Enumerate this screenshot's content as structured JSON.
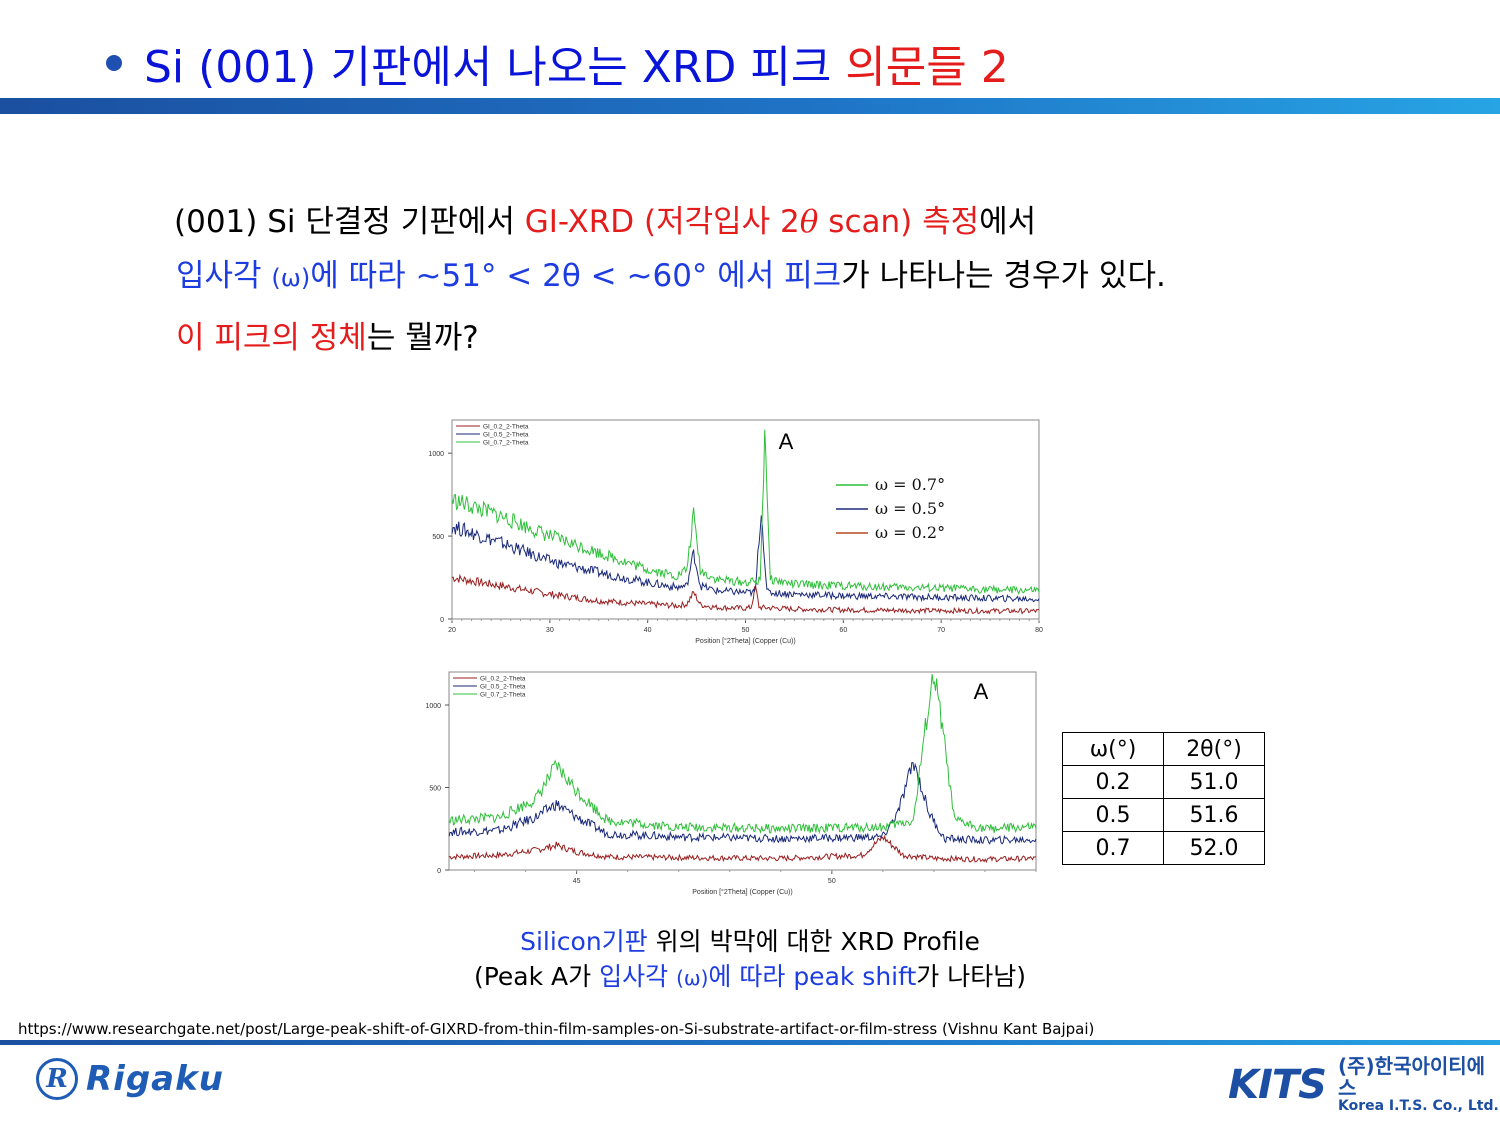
{
  "title": {
    "main": "Si (001) 기판에서 나오는 XRD 피크",
    "highlight": "의문들 2"
  },
  "body": {
    "line1_a": "(001) Si 단결정 기판에서 ",
    "line1_b": "GI-XRD (저각입사 2",
    "line1_theta": "θ",
    "line1_c": " scan) 측정",
    "line1_d": "에서",
    "line2_a": "입사각 ",
    "line2_omega": "(ω)",
    "line2_b": "에 따라  ~51° < 2θ < ~60° 에서 피크",
    "line2_c": "가 나타나는 경우가 있다.",
    "line3_a": "이 피크의 정체",
    "line3_b": "는 뭘까?"
  },
  "charts": {
    "top": {
      "peak_label": "A",
      "legend_small": [
        "GI_0.2_2-Theta",
        "GI_0.5_2-Theta",
        "GI_0.7_2-Theta"
      ],
      "legend_big": [
        "ω = 0.7°",
        "ω = 0.5°",
        "ω = 0.2°"
      ],
      "xlabel": "Position [°2Theta] (Copper (Cu))",
      "yticks": [
        "1000",
        "500",
        "0"
      ],
      "xticks": [
        "20",
        "30",
        "40",
        "50",
        "60",
        "70",
        "80"
      ]
    },
    "bottom": {
      "peak_label": "A",
      "legend_small": [
        "GI_0.2_2-Theta",
        "GI_0.5_2-Theta",
        "GI_0.7_2-Theta"
      ],
      "xlabel": "Position [°2Theta] (Copper (Cu))",
      "yticks": [
        "1000",
        "500",
        "0"
      ],
      "xticks": [
        "45",
        "50"
      ]
    }
  },
  "chart_data": [
    {
      "type": "line",
      "xlabel": "Position [°2Theta] (Copper (Cu))",
      "xlim": [
        20,
        80
      ],
      "ylim": [
        0,
        1200
      ],
      "series": [
        {
          "name": "ω = 0.7°",
          "color": "#2fbf3a",
          "x": [
            20,
            25,
            30,
            35,
            40,
            43,
            44,
            44.7,
            45.4,
            47,
            50,
            51.5,
            52.0,
            52.5,
            55,
            60,
            70,
            80
          ],
          "y": [
            720,
            620,
            500,
            400,
            300,
            260,
            300,
            630,
            290,
            240,
            220,
            230,
            1180,
            240,
            210,
            200,
            185,
            170
          ]
        },
        {
          "name": "ω = 0.5°",
          "color": "#1b2a7a",
          "x": [
            20,
            25,
            30,
            35,
            40,
            43,
            44,
            44.7,
            45.4,
            47,
            50,
            51.0,
            51.6,
            52.2,
            55,
            60,
            70,
            80
          ],
          "y": [
            560,
            460,
            350,
            280,
            220,
            190,
            200,
            400,
            200,
            170,
            160,
            160,
            660,
            160,
            150,
            140,
            130,
            120
          ]
        },
        {
          "name": "ω = 0.2°",
          "color": "#9a1f1f",
          "x": [
            20,
            25,
            30,
            35,
            40,
            43,
            44,
            44.7,
            45.4,
            47,
            50,
            50.6,
            51.0,
            51.4,
            55,
            60,
            70,
            80
          ],
          "y": [
            250,
            200,
            150,
            110,
            90,
            80,
            90,
            160,
            85,
            70,
            65,
            70,
            200,
            70,
            60,
            55,
            50,
            48
          ]
        }
      ]
    },
    {
      "type": "line",
      "xlabel": "Position [°2Theta] (Copper (Cu))",
      "xlim": [
        42.5,
        54
      ],
      "ylim": [
        0,
        1200
      ],
      "series": [
        {
          "name": "ω = 0.7°",
          "color": "#2fbf3a",
          "x": [
            42.5,
            43.5,
            44.2,
            44.6,
            45.0,
            45.6,
            47,
            49,
            51,
            51.6,
            51.85,
            52.0,
            52.15,
            52.4,
            53,
            54
          ],
          "y": [
            300,
            320,
            430,
            630,
            480,
            300,
            260,
            250,
            260,
            300,
            900,
            1190,
            900,
            300,
            250,
            260
          ]
        },
        {
          "name": "ω = 0.5°",
          "color": "#1b2a7a",
          "x": [
            42.5,
            43.5,
            44.2,
            44.6,
            45.0,
            45.6,
            47,
            49,
            51,
            51.3,
            51.6,
            51.9,
            52.2,
            53,
            54
          ],
          "y": [
            230,
            240,
            320,
            400,
            320,
            220,
            200,
            190,
            200,
            350,
            660,
            350,
            190,
            180,
            185
          ]
        },
        {
          "name": "ω = 0.2°",
          "color": "#9a1f1f",
          "x": [
            42.5,
            43.5,
            44.2,
            44.6,
            45.0,
            45.6,
            47,
            49,
            50.6,
            51.0,
            51.4,
            52,
            53,
            54
          ],
          "y": [
            80,
            90,
            120,
            150,
            110,
            80,
            75,
            70,
            90,
            200,
            90,
            70,
            65,
            70
          ]
        }
      ]
    }
  ],
  "table": {
    "headers": [
      "ω(°)",
      "2θ(°)"
    ],
    "rows": [
      [
        "0.2",
        "51.0"
      ],
      [
        "0.5",
        "51.6"
      ],
      [
        "0.7",
        "52.0"
      ]
    ]
  },
  "caption": {
    "line1_a": "Silicon기판",
    "line1_b": " 위의 박막에 대한 XRD Profile",
    "line2_a": "(Peak A가 ",
    "line2_b": "입사각 ",
    "line2_omega": "(ω)",
    "line2_c": "에 따라 peak shift",
    "line2_d": "가 나타남)"
  },
  "source": "https://www.researchgate.net/post/Large-peak-shift-of-GIXRD-from-thin-film-samples-on-Si-substrate-artifact-or-film-stress (Vishnu Kant Bajpai)",
  "logos": {
    "rigaku_mark": "R",
    "rigaku": "Rigaku",
    "kits": "KITS",
    "kits_korean": "(주)한국아이티에스",
    "kits_english": "Korea I.T.S. Co., Ltd."
  },
  "colors": {
    "title_blue": "#0a14d8",
    "highlight_red": "#e51c1c",
    "bar_blue": "#1f74c6"
  }
}
